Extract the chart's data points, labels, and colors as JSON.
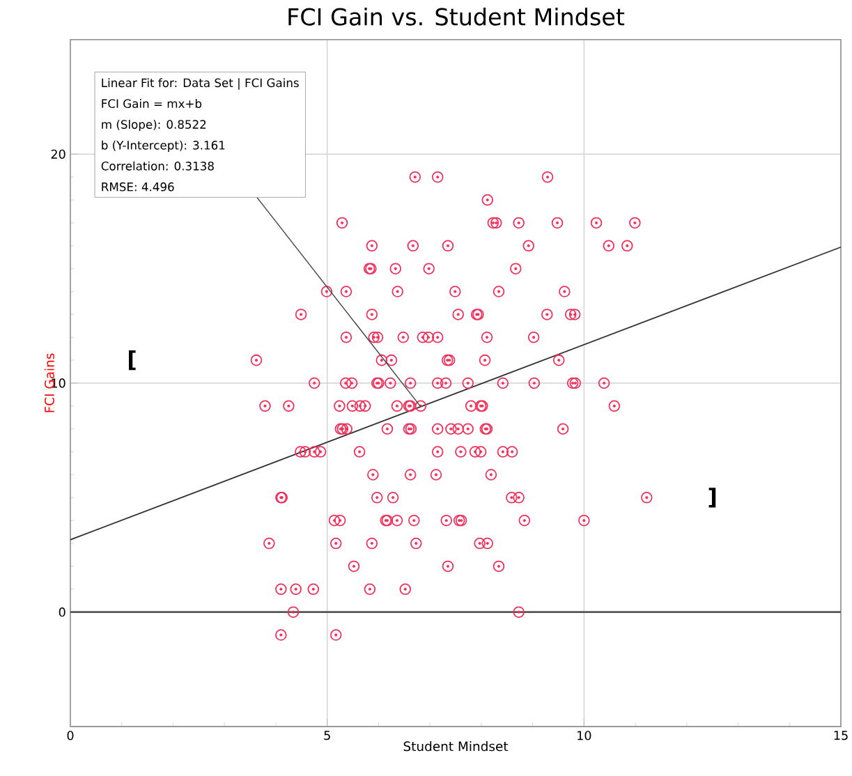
{
  "chart_data": {
    "type": "scatter",
    "title": "FCI Gain vs. Student Mindset",
    "xlabel": "Student Mindset",
    "ylabel": "FCI Gains",
    "xlim": [
      0,
      15
    ],
    "ylim": [
      -5,
      25
    ],
    "xticks": [
      0,
      5,
      10,
      15
    ],
    "yticks": [
      0,
      10,
      20
    ],
    "grid": true,
    "ref_lines": [
      {
        "axis": "y",
        "value": 0,
        "color": "#555555"
      }
    ],
    "annotations": [
      "Linear Fit for: Data Set | FCI Gains",
      "FCI Gain = mx+b",
      "m (Slope): 0.8522",
      "b (Y-Intercept): 3.161",
      "Correlation: 0.3138",
      "RMSE: 4.496",
      "[",
      "]"
    ],
    "series": [
      {
        "type": "scatter",
        "color": "#f0305a",
        "marker": "circle",
        "x": [
          6.71,
          7.15,
          9.29,
          8.12,
          5.29,
          8.23,
          8.29,
          8.73,
          9.48,
          10.24,
          10.99,
          5.87,
          6.67,
          7.35,
          8.92,
          10.48,
          10.84,
          5.82,
          5.85,
          6.33,
          6.98,
          8.67,
          4.99,
          5.37,
          6.37,
          7.49,
          8.34,
          9.62,
          4.49,
          5.87,
          7.55,
          7.91,
          7.94,
          9.28,
          9.74,
          9.82,
          5.37,
          5.91,
          5.98,
          6.48,
          6.86,
          6.97,
          7.15,
          8.11,
          9.02,
          3.62,
          6.06,
          6.25,
          7.34,
          7.38,
          8.07,
          9.51,
          4.75,
          5.36,
          5.48,
          5.97,
          6.0,
          6.23,
          6.62,
          7.15,
          7.31,
          7.74,
          8.42,
          9.03,
          9.78,
          9.83,
          10.39,
          3.79,
          4.25,
          5.24,
          5.49,
          5.64,
          5.74,
          6.36,
          6.59,
          6.62,
          6.82,
          7.8,
          7.99,
          8.02,
          10.59,
          5.26,
          5.3,
          5.38,
          6.17,
          6.59,
          6.63,
          7.15,
          7.41,
          7.55,
          7.74,
          8.08,
          8.11,
          9.59,
          4.48,
          4.57,
          4.75,
          4.87,
          5.63,
          7.15,
          7.6,
          7.88,
          7.99,
          8.42,
          8.6,
          5.89,
          6.62,
          7.12,
          8.19,
          4.1,
          4.12,
          5.97,
          6.28,
          8.59,
          8.73,
          11.22,
          5.14,
          5.25,
          6.14,
          6.17,
          6.36,
          6.69,
          7.32,
          7.57,
          7.61,
          8.84,
          10.0,
          3.87,
          5.17,
          5.87,
          6.73,
          7.97,
          8.12,
          5.52,
          7.35,
          8.34,
          4.1,
          4.39,
          4.73,
          5.83,
          6.52,
          4.34,
          8.73,
          4.1,
          5.17
        ],
        "values": [
          19,
          19,
          19,
          18,
          17,
          17,
          17,
          17,
          17,
          17,
          17,
          16,
          16,
          16,
          16,
          16,
          16,
          15,
          15,
          15,
          15,
          15,
          14,
          14,
          14,
          14,
          14,
          14,
          13,
          13,
          13,
          13,
          13,
          13,
          13,
          13,
          12,
          12,
          12,
          12,
          12,
          12,
          12,
          12,
          12,
          11,
          11,
          11,
          11,
          11,
          11,
          11,
          10,
          10,
          10,
          10,
          10,
          10,
          10,
          10,
          10,
          10,
          10,
          10,
          10,
          10,
          10,
          9,
          9,
          9,
          9,
          9,
          9,
          9,
          9,
          9,
          9,
          9,
          9,
          9,
          9,
          8,
          8,
          8,
          8,
          8,
          8,
          8,
          8,
          8,
          8,
          8,
          8,
          8,
          7,
          7,
          7,
          7,
          7,
          7,
          7,
          7,
          7,
          7,
          7,
          6,
          6,
          6,
          6,
          5,
          5,
          5,
          5,
          5,
          5,
          5,
          4,
          4,
          4,
          4,
          4,
          4,
          4,
          4,
          4,
          4,
          4,
          3,
          3,
          3,
          3,
          3,
          3,
          2,
          2,
          2,
          1,
          1,
          1,
          1,
          1,
          0,
          0,
          -1,
          -1
        ]
      },
      {
        "type": "line",
        "color": "#333333",
        "x": [
          0,
          15
        ],
        "values": [
          3.16,
          15.94
        ]
      }
    ]
  }
}
